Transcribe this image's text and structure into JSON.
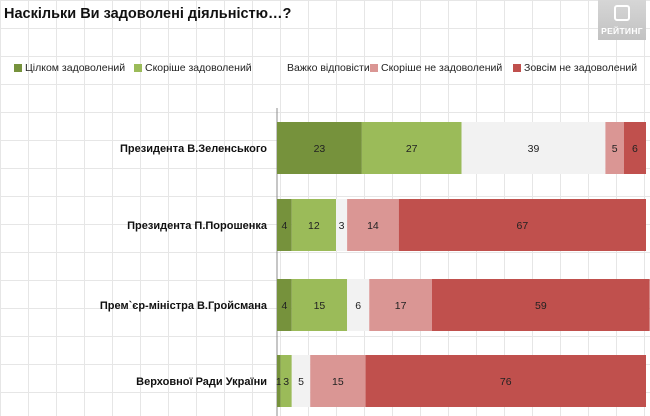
{
  "title": "Наскільки Ви задоволені діяльністю…?",
  "logo": {
    "text": "РЕЙТИНГ"
  },
  "chart_data": {
    "type": "bar",
    "orientation": "horizontal",
    "stacked": true,
    "title": "Наскільки Ви задоволені діяльністю…?",
    "categories": [
      "Президента В.Зеленського",
      "Президента П.Порошенка",
      "Прем`єр-міністра В.Гройсмана",
      "Верховної Ради України"
    ],
    "series": [
      {
        "name": "Цілком задоволений",
        "color": "#76923c",
        "label_color": "#1a1a1a",
        "values": [
          23,
          4,
          4,
          1
        ]
      },
      {
        "name": "Скоріше задоволений",
        "color": "#9bbb59",
        "label_color": "#1a1a1a",
        "values": [
          27,
          12,
          15,
          3
        ]
      },
      {
        "name": "Важко відповісти",
        "color": "#f2f2f2",
        "label_color": "#1a1a1a",
        "values": [
          39,
          3,
          6,
          5
        ]
      },
      {
        "name": "Скоріше не задоволений",
        "color": "#da9694",
        "label_color": "#1a1a1a",
        "values": [
          5,
          14,
          17,
          15
        ]
      },
      {
        "name": "Зовсім не задоволений",
        "color": "#c0504d",
        "label_color": "#1a1a1a",
        "values": [
          6,
          67,
          59,
          76
        ]
      }
    ],
    "xlim": [
      0,
      100
    ],
    "legend_position": "top",
    "grid": true
  }
}
